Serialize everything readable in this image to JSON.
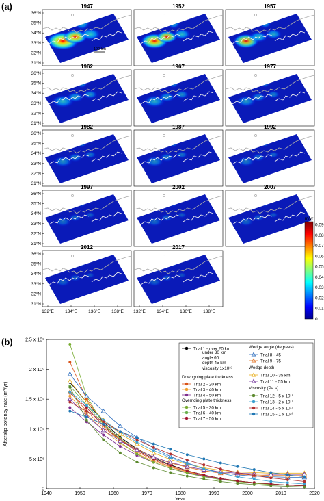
{
  "panel_a": {
    "label": "(a)",
    "years": [
      "1947",
      "1952",
      "1957",
      "1962",
      "1967",
      "1977",
      "1982",
      "1987",
      "1992",
      "1997",
      "2002",
      "2007",
      "2012",
      "2017"
    ],
    "intensity": [
      1.0,
      0.75,
      0.65,
      0.5,
      0.45,
      0.35,
      0.3,
      0.28,
      0.2,
      0.15,
      0.12,
      0.1,
      0.08,
      0.07
    ],
    "lat_ticks": [
      "31°N",
      "32°N",
      "33°N",
      "34°N",
      "35°N",
      "36°N"
    ],
    "lon_ticks": [
      "132°E",
      "134°E",
      "136°E",
      "138°E"
    ],
    "scale_label": "100 km",
    "colorbar": {
      "unit": "m/yr",
      "ticks": [
        "0",
        "0.01",
        "0.02",
        "0.03",
        "0.04",
        "0.05",
        "0.06",
        "0.07",
        "0.08",
        "0.09"
      ],
      "colors": [
        "#00008f",
        "#0000ff",
        "#0080ff",
        "#00ffff",
        "#80ff80",
        "#ffff00",
        "#ff8000",
        "#ff0000",
        "#800000"
      ]
    }
  },
  "chart_data": {
    "type": "line",
    "label": "(b)",
    "title": "",
    "xlabel": "Year",
    "ylabel": "Afterslip potency rate (m³/yr)",
    "xlim": [
      1940,
      2020
    ],
    "ylim": [
      0,
      2500000000.0
    ],
    "xticks": [
      "1940",
      "1950",
      "1960",
      "1970",
      "1980",
      "1990",
      "2000",
      "2010",
      "2020"
    ],
    "yticks": [
      "0",
      "5 x 10⁸",
      "1 x 10⁹",
      "1.5 x 10⁹",
      "2 x 10⁹",
      "2.5 x 10⁹"
    ],
    "x": [
      1947,
      1952,
      1957,
      1962,
      1967,
      1972,
      1977,
      1982,
      1987,
      1992,
      1997,
      2002,
      2007,
      2012,
      2017
    ],
    "legend_headers": {
      "downgoing": "Downgoing plate thickness",
      "overriding": "Overriding plate thickness",
      "wedge_angle": "Wedge angle (degrees)",
      "wedge_depth": "Wedge depth",
      "viscosity": "Viscosity (Pa s)"
    },
    "trial1_note": [
      "under 30 km",
      "angle 60",
      "depth 45 km",
      "viscosity 1x10¹⁹"
    ],
    "series": [
      {
        "name": "Trial 1 - over 20 km",
        "color": "#000000",
        "marker": "circle",
        "values": [
          1780000000.0,
          1450000000.0,
          1120000000.0,
          860000000.0,
          670000000.0,
          520000000.0,
          400000000.0,
          300000000.0,
          230000000.0,
          170000000.0,
          130000000.0,
          100000000.0,
          80000000.0,
          60000000.0,
          50000000.0
        ]
      },
      {
        "name": "Trial 2 - 20 km",
        "color": "#d95319",
        "marker": "circle",
        "values": [
          2120000000.0,
          1500000000.0,
          1100000000.0,
          820000000.0,
          620000000.0,
          480000000.0,
          370000000.0,
          290000000.0,
          220000000.0,
          170000000.0,
          130000000.0,
          100000000.0,
          80000000.0,
          60000000.0,
          50000000.0
        ]
      },
      {
        "name": "Trial 3 - 40 km",
        "color": "#f0a030",
        "marker": "circle",
        "values": [
          1550000000.0,
          1250000000.0,
          980000000.0,
          760000000.0,
          590000000.0,
          460000000.0,
          360000000.0,
          280000000.0,
          210000000.0,
          160000000.0,
          120000000.0,
          100000000.0,
          80000000.0,
          60000000.0,
          50000000.0
        ]
      },
      {
        "name": "Trial 4 - 50 km",
        "color": "#7e2f8e",
        "marker": "circle",
        "values": [
          1360000000.0,
          1120000000.0,
          900000000.0,
          710000000.0,
          560000000.0,
          440000000.0,
          340000000.0,
          270000000.0,
          210000000.0,
          160000000.0,
          120000000.0,
          100000000.0,
          80000000.0,
          60000000.0,
          50000000.0
        ]
      },
      {
        "name": "Trial 5 - 30 km",
        "color": "#77ac30",
        "marker": "circle",
        "values": [
          2420000000.0,
          1550000000.0,
          1080000000.0,
          780000000.0,
          580000000.0,
          440000000.0,
          340000000.0,
          260000000.0,
          200000000.0,
          150000000.0,
          120000000.0,
          90000000.0,
          70000000.0,
          60000000.0,
          50000000.0
        ]
      },
      {
        "name": "Trial 6 - 40 km",
        "color": "#6ab04c",
        "marker": "circle",
        "values": [
          1720000000.0,
          1400000000.0,
          1080000000.0,
          840000000.0,
          650000000.0,
          500000000.0,
          390000000.0,
          300000000.0,
          230000000.0,
          170000000.0,
          130000000.0,
          100000000.0,
          80000000.0,
          60000000.0,
          50000000.0
        ]
      },
      {
        "name": "Trial 7 - 50 km",
        "color": "#a2142f",
        "marker": "circle",
        "values": [
          1600000000.0,
          1360000000.0,
          1050000000.0,
          820000000.0,
          640000000.0,
          500000000.0,
          390000000.0,
          300000000.0,
          230000000.0,
          170000000.0,
          130000000.0,
          100000000.0,
          80000000.0,
          60000000.0,
          50000000.0
        ]
      },
      {
        "name": "Trial 8 - 45",
        "color": "#2f6fbf",
        "marker": "triangle",
        "values": [
          1920000000.0,
          1550000000.0,
          1300000000.0,
          1050000000.0,
          860000000.0,
          680000000.0,
          540000000.0,
          430000000.0,
          340000000.0,
          270000000.0,
          230000000.0,
          210000000.0,
          200000000.0,
          190000000.0,
          190000000.0
        ]
      },
      {
        "name": "Trial 9 - 75",
        "color": "#e07020",
        "marker": "triangle",
        "values": [
          1620000000.0,
          1300000000.0,
          1020000000.0,
          820000000.0,
          660000000.0,
          530000000.0,
          430000000.0,
          360000000.0,
          300000000.0,
          260000000.0,
          240000000.0,
          230000000.0,
          220000000.0,
          220000000.0,
          220000000.0
        ]
      },
      {
        "name": "Trial 10 - 35 km",
        "color": "#e8b020",
        "marker": "triangle",
        "values": [
          1800000000.0,
          1450000000.0,
          1150000000.0,
          920000000.0,
          750000000.0,
          600000000.0,
          490000000.0,
          410000000.0,
          350000000.0,
          310000000.0,
          280000000.0,
          270000000.0,
          260000000.0,
          260000000.0,
          260000000.0
        ]
      },
      {
        "name": "Trial 11 - 55 km",
        "color": "#7a3fa0",
        "marker": "triangle",
        "values": [
          1500000000.0,
          1220000000.0,
          980000000.0,
          800000000.0,
          650000000.0,
          530000000.0,
          440000000.0,
          370000000.0,
          320000000.0,
          280000000.0,
          260000000.0,
          250000000.0,
          240000000.0,
          240000000.0,
          240000000.0
        ]
      },
      {
        "name": "Trial 12 - 5 x 10¹⁸",
        "color": "#5c8a2e",
        "marker": "circle",
        "values": [
          1700000000.0,
          1150000000.0,
          820000000.0,
          600000000.0,
          450000000.0,
          350000000.0,
          270000000.0,
          210000000.0,
          160000000.0,
          120000000.0,
          90000000.0,
          70000000.0,
          50000000.0,
          40000000.0,
          30000000.0
        ]
      },
      {
        "name": "Trial 13 - 2 x 10¹⁹",
        "color": "#3aa0d0",
        "marker": "circle",
        "values": [
          1620000000.0,
          1400000000.0,
          1150000000.0,
          950000000.0,
          780000000.0,
          640000000.0,
          520000000.0,
          420000000.0,
          330000000.0,
          260000000.0,
          200000000.0,
          160000000.0,
          120000000.0,
          100000000.0,
          80000000.0
        ]
      },
      {
        "name": "Trial 14 - 5 x 10¹⁹",
        "color": "#b03030",
        "marker": "circle",
        "values": [
          1450000000.0,
          1300000000.0,
          1120000000.0,
          960000000.0,
          820000000.0,
          690000000.0,
          580000000.0,
          480000000.0,
          400000000.0,
          330000000.0,
          270000000.0,
          220000000.0,
          180000000.0,
          150000000.0,
          120000000.0
        ]
      },
      {
        "name": "Trial 15 - 1 x 10²⁰",
        "color": "#1f77b4",
        "marker": "circle",
        "values": [
          1300000000.0,
          1200000000.0,
          1080000000.0,
          960000000.0,
          850000000.0,
          750000000.0,
          660000000.0,
          570000000.0,
          500000000.0,
          430000000.0,
          370000000.0,
          320000000.0,
          270000000.0,
          230000000.0,
          200000000.0
        ]
      }
    ]
  }
}
